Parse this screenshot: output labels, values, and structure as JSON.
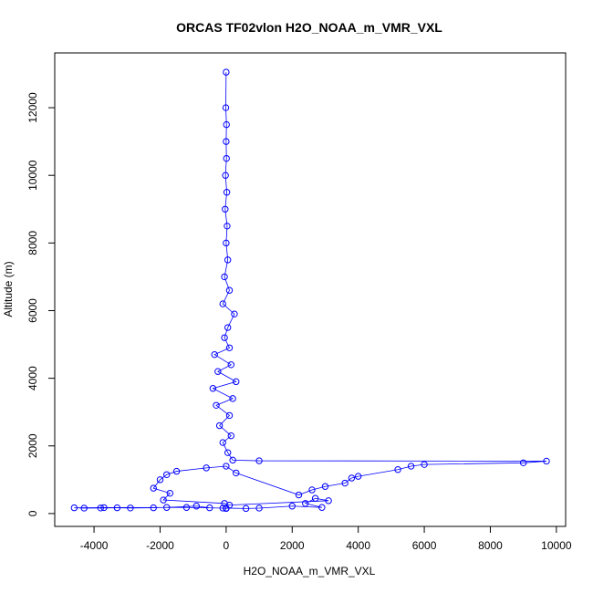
{
  "chart_data": {
    "type": "line",
    "title": "ORCAS TF02vlon H2O_NOAA_m_VMR_VXL",
    "xlabel": "H2O_NOAA_m_VMR_VXL",
    "ylabel": "Altitude (m)",
    "color": "#0000ff",
    "markers": true,
    "xlim": [
      -5190,
      10280
    ],
    "ylim": [
      -380,
      13620
    ],
    "xticks": [
      -4000,
      -2000,
      0,
      2000,
      4000,
      6000,
      8000,
      10000
    ],
    "yticks": [
      0,
      2000,
      4000,
      6000,
      8000,
      10000,
      12000
    ],
    "x": [
      0,
      -100,
      -500,
      -900,
      -1800,
      -2200,
      -2900,
      -3300,
      -3800,
      -4300,
      -4600,
      -3700,
      -1200,
      0,
      600,
      1000,
      2000,
      2900,
      2400,
      2700,
      3100,
      100,
      -50,
      -1900,
      -1700,
      -2200,
      -2000,
      -1800,
      -1500,
      -600,
      0,
      300,
      2200,
      2600,
      3000,
      3600,
      3800,
      4000,
      5200,
      5600,
      6000,
      9000,
      9700,
      1000,
      200,
      50,
      -100,
      150,
      -200,
      100,
      -300,
      200,
      -400,
      300,
      -250,
      150,
      -350,
      100,
      -50,
      50,
      250,
      -100,
      100,
      -50,
      50,
      0,
      30,
      -30,
      20,
      -20,
      10,
      0,
      10,
      -10,
      0
    ],
    "values": [
      150,
      160,
      170,
      220,
      180,
      170,
      165,
      170,
      165,
      160,
      170,
      175,
      180,
      160,
      150,
      160,
      220,
      180,
      300,
      450,
      380,
      250,
      300,
      400,
      600,
      750,
      1000,
      1150,
      1250,
      1350,
      1400,
      1200,
      550,
      700,
      800,
      900,
      1050,
      1100,
      1300,
      1400,
      1450,
      1500,
      1550,
      1560,
      1580,
      1800,
      2100,
      2300,
      2600,
      2900,
      3200,
      3400,
      3700,
      3900,
      4200,
      4400,
      4700,
      4900,
      5200,
      5500,
      5900,
      6200,
      6600,
      7000,
      7500,
      8000,
      8500,
      9000,
      9500,
      10000,
      10500,
      11000,
      11500,
      12000,
      13050
    ]
  }
}
